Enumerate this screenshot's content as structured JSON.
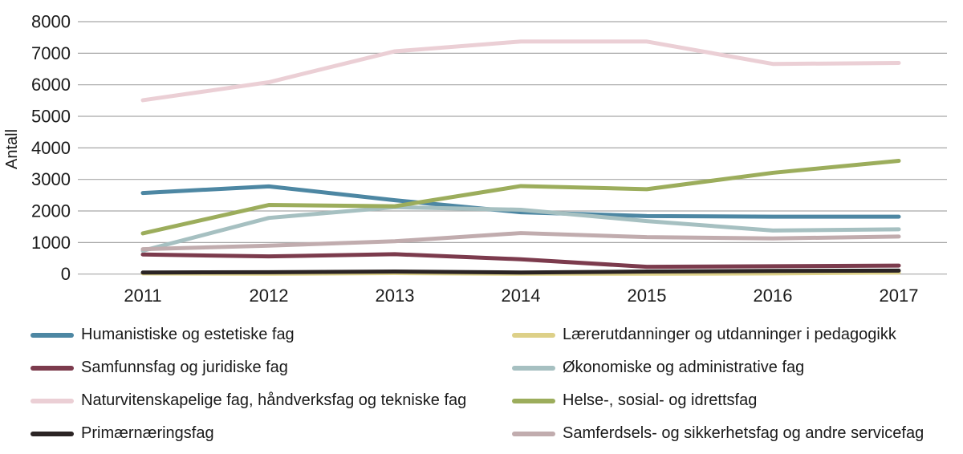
{
  "chart_data": {
    "type": "line",
    "title": "",
    "xlabel": "",
    "ylabel": "Antall",
    "ylim": [
      0,
      8000
    ],
    "y_ticks": [
      0,
      1000,
      2000,
      3000,
      4000,
      5000,
      6000,
      7000,
      8000
    ],
    "categories": [
      "2011",
      "2012",
      "2013",
      "2014",
      "2015",
      "2016",
      "2017"
    ],
    "grid": "horizontal",
    "gridline_color": "#a7a7a7",
    "legend_position": "bottom, two columns",
    "series": [
      {
        "name": "Humanistiske og estetiske fag",
        "color": "#4d87a3",
        "values": [
          2570,
          2780,
          2340,
          1960,
          1840,
          1820,
          1820
        ]
      },
      {
        "name": "Lærerutdanninger og utdanninger i pedagogikk",
        "color": "#ddd088",
        "values": [
          20,
          10,
          30,
          10,
          10,
          20,
          50
        ]
      },
      {
        "name": "Samfunnsfag og juridiske fag",
        "color": "#7c3b4d",
        "values": [
          620,
          560,
          630,
          470,
          230,
          250,
          270
        ]
      },
      {
        "name": "Økonomiske og administrative fag",
        "color": "#a6c0c1",
        "values": [
          740,
          1780,
          2120,
          2040,
          1680,
          1380,
          1420
        ]
      },
      {
        "name": "Naturvitenskapelige fag, håndverksfag og tekniske fag",
        "color": "#ebcfd5",
        "values": [
          5510,
          6080,
          7060,
          7370,
          7370,
          6660,
          6690
        ]
      },
      {
        "name": "Helse-, sosial- og idrettsfag",
        "color": "#9cad5c",
        "values": [
          1290,
          2190,
          2150,
          2790,
          2690,
          3210,
          3590
        ]
      },
      {
        "name": "Primærnæringsfag",
        "color": "#2b2424",
        "values": [
          50,
          60,
          80,
          50,
          80,
          100,
          110
        ]
      },
      {
        "name": "Samferdsels- og sikkerhetsfag og andre servicefag",
        "color": "#c1acae",
        "values": [
          790,
          900,
          1040,
          1300,
          1170,
          1130,
          1190
        ]
      }
    ]
  }
}
